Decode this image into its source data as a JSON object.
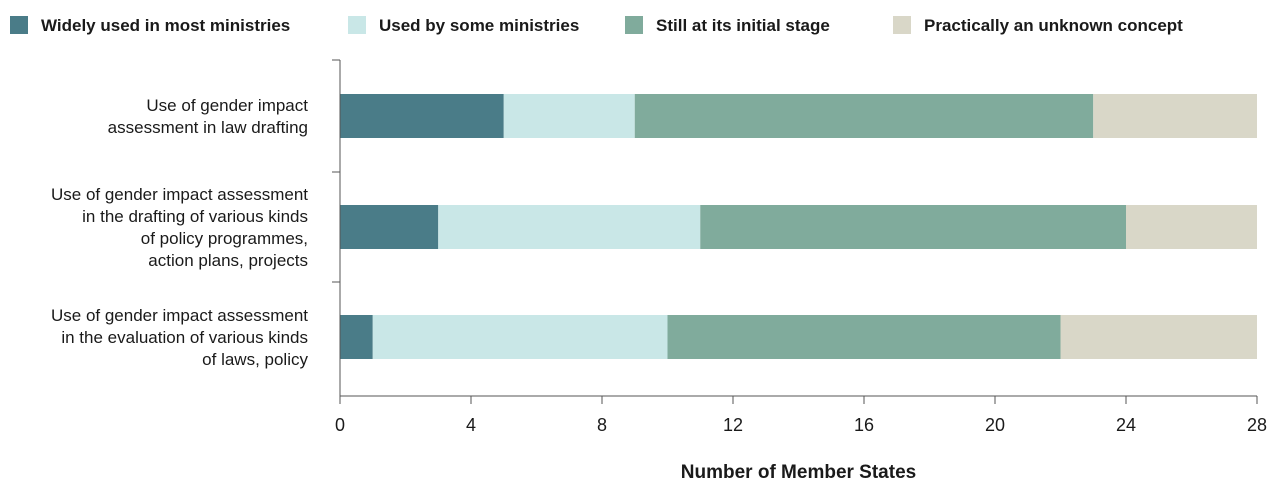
{
  "chart_data": {
    "type": "bar",
    "orientation": "horizontal",
    "stacked": true,
    "categories": [
      [
        "Use of gender impact",
        "assessment in law drafting"
      ],
      [
        "Use of gender impact assessment",
        "in the drafting of various kinds",
        "of policy programmes,",
        "action plans, projects"
      ],
      [
        "Use of gender impact assessment",
        "in the evaluation of various kinds",
        "of laws, policy"
      ]
    ],
    "series": [
      {
        "name": "Widely used in most ministries",
        "color": "#4a7c88",
        "values": [
          5,
          3,
          1
        ]
      },
      {
        "name": "Used by some ministries",
        "color": "#c9e7e7",
        "values": [
          4,
          8,
          9
        ]
      },
      {
        "name": "Still at its initial stage",
        "color": "#80ab9c",
        "values": [
          14,
          13,
          12
        ]
      },
      {
        "name": "Practically an unknown concept",
        "color": "#d9d7c8",
        "values": [
          5,
          4,
          6
        ]
      }
    ],
    "xlim": [
      0,
      28
    ],
    "xticks": [
      0,
      4,
      8,
      12,
      16,
      20,
      24,
      28
    ],
    "xlabel": "Number of Member States",
    "ylabel": "",
    "title": "",
    "grid": false,
    "legend_position": "top"
  }
}
